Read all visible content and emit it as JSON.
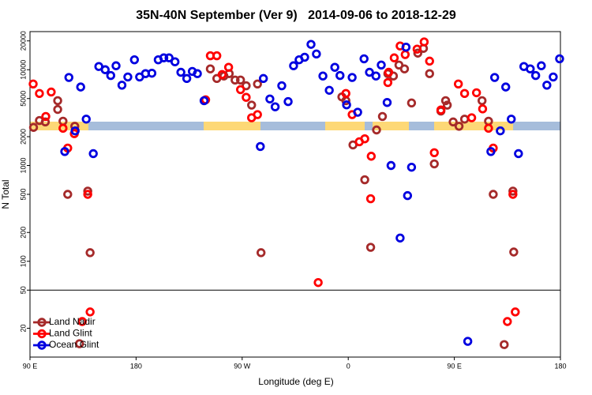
{
  "chart_data": {
    "type": "scatter",
    "title": "35N-40N September (Ver 9)   2014-09-06 to 2018-12-29",
    "x_label": "Longitude (deg E)",
    "y_label": "N Total",
    "xlim": [
      90,
      540
    ],
    "xticks": [
      {
        "value": 90,
        "label": "90 E"
      },
      180,
      {
        "value": 270,
        "label": "90 W"
      },
      {
        "value": 360,
        "label": "0"
      },
      {
        "value": 450,
        "label": "90 E"
      },
      {
        "value": 540,
        "label": "180"
      }
    ],
    "ylim": [
      10,
      25000
    ],
    "log_y": true,
    "yticks": [
      20,
      50,
      100,
      200,
      500,
      1000,
      2000,
      5000,
      10000,
      20000
    ],
    "legend": "bottom-left",
    "series": [
      {
        "name": "Land Nadir",
        "color": "#a52a2a",
        "x": [
          93,
          98,
          103,
          113.5,
          113.5,
          118,
          122,
          128,
          139,
          141,
          132,
          243,
          248.5,
          254.5,
          259,
          264,
          268.6,
          273.4,
          278,
          283,
          286,
          354.6,
          358,
          364,
          374,
          379,
          384,
          389,
          393.6,
          398.3,
          403,
          407.7,
          413.7,
          419,
          423.8,
          429,
          433,
          438.6,
          442.6,
          444,
          449,
          454,
          458.7,
          473.5,
          479,
          483,
          492.3,
          499.7,
          500.4
        ],
        "values": [
          2500,
          2950,
          2850,
          4750,
          3850,
          2900,
          500,
          2570,
          540,
          123,
          13.8,
          10200,
          8100,
          8600,
          9100,
          7800,
          7800,
          6800,
          4270,
          7100,
          123,
          5200,
          4750,
          1640,
          710,
          140,
          2350,
          3250,
          9100,
          8600,
          11200,
          10200,
          4500,
          14900,
          16700,
          9100,
          1040,
          3700,
          4750,
          4270,
          2850,
          2570,
          3050,
          4750,
          2900,
          500,
          13.5,
          540,
          125
        ]
      },
      {
        "name": "Land Glint",
        "color": "#ff0000",
        "x": [
          92.7,
          98,
          103.4,
          108,
          118,
          122,
          127.6,
          139,
          134.3,
          141,
          239,
          243,
          248.5,
          253,
          258.5,
          268.6,
          273.4,
          278,
          283,
          334.5,
          358,
          363.3,
          369.4,
          374,
          379.5,
          379,
          393.6,
          394.3,
          399,
          404,
          408.3,
          418.4,
          424.4,
          429,
          433,
          438.6,
          453.4,
          458.7,
          464.7,
          468.8,
          474,
          479,
          483,
          495,
          501.7,
          499.7
        ],
        "values": [
          7100,
          5650,
          3250,
          5850,
          2450,
          1520,
          2150,
          500,
          23.5,
          29.6,
          4850,
          14000,
          14000,
          8900,
          10600,
          6200,
          5150,
          3150,
          3400,
          60,
          5650,
          3400,
          1770,
          1900,
          1250,
          450,
          7350,
          9400,
          13300,
          17700,
          14400,
          16400,
          19500,
          12300,
          1360,
          3800,
          7100,
          5650,
          3150,
          5750,
          3900,
          2450,
          1520,
          23.5,
          29.6,
          500
        ]
      },
      {
        "name": "Ocean Glint",
        "color": "#0000e0",
        "x": [
          119.5,
          123,
          128.3,
          133,
          137.7,
          143.7,
          148.4,
          153.8,
          158.5,
          163,
          168,
          173,
          178.6,
          183,
          188,
          193.4,
          198.8,
          203.5,
          208,
          213,
          218,
          223,
          227.7,
          232,
          237.7,
          285.4,
          288,
          293.5,
          298,
          303.6,
          309,
          313.6,
          318.3,
          323,
          328.4,
          333,
          338.5,
          343.9,
          348.6,
          353,
          358.6,
          363.3,
          368,
          373.4,
          378,
          383.5,
          388,
          393,
          396.3,
          404,
          409,
          410.3,
          413.7,
          461.4,
          481,
          484.2,
          489,
          493.6,
          498.3,
          504.4,
          509,
          514.4,
          519,
          523.8,
          528.5,
          533.9,
          539.3
        ],
        "values": [
          1400,
          8300,
          2300,
          6600,
          3050,
          1330,
          10800,
          10000,
          8700,
          11000,
          6900,
          8400,
          12700,
          8400,
          9100,
          9200,
          12700,
          13300,
          13300,
          12100,
          9400,
          8100,
          9600,
          9100,
          4750,
          1580,
          8100,
          4950,
          4100,
          6800,
          4650,
          11000,
          12700,
          13500,
          18400,
          14600,
          8600,
          6100,
          10600,
          8700,
          4300,
          8300,
          3600,
          13000,
          9400,
          8600,
          11200,
          4550,
          1000,
          175,
          17200,
          485,
          960,
          14.6,
          1400,
          8300,
          2300,
          6600,
          3050,
          1330,
          10800,
          10200,
          8700,
          11000,
          6900,
          8400,
          13000
        ]
      }
    ]
  }
}
